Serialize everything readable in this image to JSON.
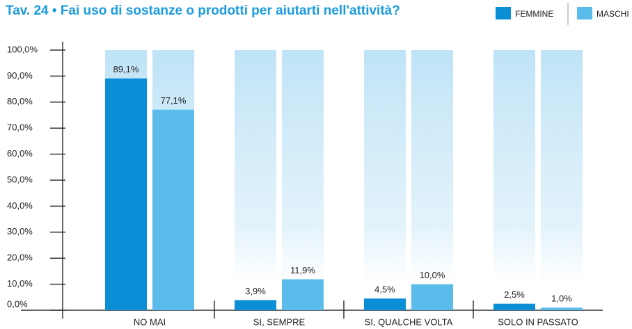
{
  "chart_data": {
    "type": "bar",
    "title": "Tav. 24 • Fai uso di sostanze o prodotti per aiutarti nell'attività?",
    "categories": [
      "NO MAI",
      "SI, SEMPRE",
      "SI, QUALCHE VOLTA",
      "SOLO IN PASSATO"
    ],
    "series": [
      {
        "name": "FEMMINE",
        "color": "#0a8fd6",
        "values": [
          89.1,
          3.9,
          4.5,
          2.5
        ],
        "value_labels": [
          "89,1%",
          "3,9%",
          "4,5%",
          "2,5%"
        ]
      },
      {
        "name": "MASCHI",
        "color": "#5bbcec",
        "values": [
          77.1,
          11.9,
          10.0,
          1.0
        ],
        "value_labels": [
          "77,1%",
          "11,9%",
          "10,0%",
          "1,0%"
        ]
      }
    ],
    "ylim": [
      0,
      100
    ],
    "yticks": [
      {
        "value": 0,
        "label": "0,0%"
      },
      {
        "value": 10,
        "label": "10,0%"
      },
      {
        "value": 20,
        "label": "20,0%"
      },
      {
        "value": 30,
        "label": "30,0%"
      },
      {
        "value": 40,
        "label": "40,0%"
      },
      {
        "value": 50,
        "label": "50,0%"
      },
      {
        "value": 60,
        "label": "60,0%"
      },
      {
        "value": 70,
        "label": "70,0%"
      },
      {
        "value": 80,
        "label": "80,0%"
      },
      {
        "value": 90,
        "label": "90,0%"
      },
      {
        "value": 100,
        "label": "100,0%"
      }
    ]
  }
}
